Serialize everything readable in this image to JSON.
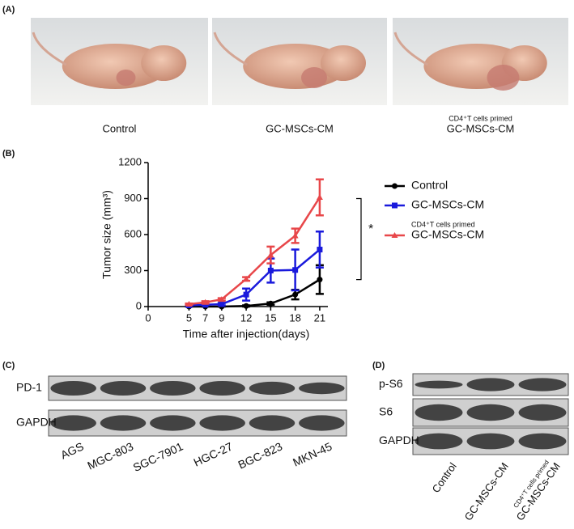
{
  "panels": {
    "a": {
      "label": "(A)",
      "photos": [
        {
          "label": "Control"
        },
        {
          "label": "GC-MSCs-CM"
        },
        {
          "note": "CD4⁺T cells primed",
          "label": "GC-MSCs-CM"
        }
      ]
    },
    "b": {
      "label": "(B)"
    },
    "c": {
      "label": "(C)",
      "rows": [
        "PD-1",
        "GAPDH"
      ],
      "lanes": [
        "AGS",
        "MGC-803",
        "SGC-7901",
        "HGC-27",
        "BGC-823",
        "MKN-45"
      ]
    },
    "d": {
      "label": "(D)",
      "rows": [
        "p-S6",
        "S6",
        "GAPDH"
      ],
      "lanes": [
        {
          "label": "Control"
        },
        {
          "label": "GC-MSCs-CM"
        },
        {
          "note": "CD4⁺T cells primed",
          "label": "GC-MSCs-CM"
        }
      ]
    }
  },
  "chart_data": {
    "type": "line",
    "x_label": "Time after injection(days)",
    "y_label": "Tumor size (mm³)",
    "annotation": "*",
    "x": [
      5,
      7,
      9,
      12,
      15,
      18,
      21
    ],
    "xlim": [
      0,
      22
    ],
    "xticks": [
      0,
      5,
      7,
      9,
      12,
      15,
      18,
      21
    ],
    "ylim": [
      0,
      1200
    ],
    "yticks": [
      0,
      300,
      600,
      900,
      1200
    ],
    "series": [
      {
        "name": "Control",
        "color": "#000000",
        "marker": "circle",
        "values": [
          0,
          0,
          0,
          5,
          25,
          100,
          225
        ],
        "errors": [
          0,
          0,
          0,
          5,
          10,
          40,
          120
        ]
      },
      {
        "name": "GC-MSCs-CM",
        "color": "#1a1adc",
        "marker": "square",
        "values": [
          10,
          15,
          20,
          100,
          300,
          305,
          475
        ],
        "errors": [
          5,
          5,
          10,
          50,
          100,
          170,
          150
        ]
      },
      {
        "name": "GC-MSCs-CM",
        "note": "CD4⁺T cells primed",
        "color": "#e8474a",
        "marker": "triangle",
        "values": [
          20,
          35,
          60,
          230,
          430,
          590,
          910
        ],
        "errors": [
          5,
          10,
          10,
          15,
          70,
          60,
          150
        ]
      }
    ]
  }
}
